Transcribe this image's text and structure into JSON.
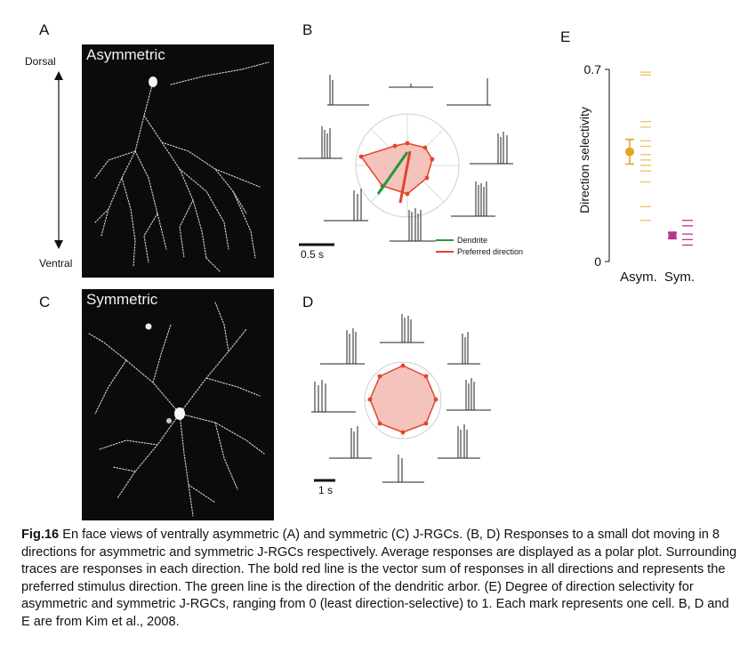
{
  "panels": {
    "A": {
      "letter": "A",
      "title": "Asymmetric",
      "axis_top": "Dorsal",
      "axis_bottom": "Ventral"
    },
    "B": {
      "letter": "B",
      "scale_label": "0.5 s",
      "legend": [
        {
          "label": "Dendrite",
          "color": "#1f9a3a"
        },
        {
          "label": "Preferred direction",
          "color": "#e2452b"
        }
      ]
    },
    "C": {
      "letter": "C",
      "title": "Symmetric"
    },
    "D": {
      "letter": "D",
      "scale_label": "1 s"
    },
    "E": {
      "letter": "E"
    }
  },
  "colors": {
    "asym": "#e0a81c",
    "asym_light": "#f0c060",
    "sym": "#b8378a",
    "polar_fill": "#f4c4bc",
    "polar_line": "#e2452b",
    "dendrite": "#1f9a3a"
  },
  "chart_data": {
    "type": "scatter",
    "title": "",
    "xlabel": "",
    "ylabel": "Direction selectivity",
    "categories": [
      "Asym.",
      "Sym."
    ],
    "ylim": [
      0,
      0.7
    ],
    "yticks": [
      "0",
      "0.7"
    ],
    "series": [
      {
        "name": "Asym.",
        "mean": 0.4,
        "error": 0.045,
        "cells": [
          0.68,
          0.69,
          0.51,
          0.49,
          0.44,
          0.42,
          0.39,
          0.37,
          0.35,
          0.33,
          0.29,
          0.2,
          0.15
        ]
      },
      {
        "name": "Sym.",
        "mean": 0.095,
        "error": 0.01,
        "cells": [
          0.15,
          0.13,
          0.1,
          0.08,
          0.06
        ]
      }
    ]
  },
  "caption": {
    "label": "Fig.16",
    "text": " En face views of ventrally asymmetric (A) and symmetric (C) J-RGCs. (B, D) Responses to a small dot moving in 8 directions for asymmetric and symmetric J-RGCs respectively. Average responses are displayed as a polar plot. Surrounding traces are responses in each direction. The bold red line is the vector sum of responses in all directions and represents the preferred stimulus direction. The green line is the direction of the dendritic arbor. (E) Degree of direction selectivity for asymmetric and symmetric J-RGCs, ranging from 0 (least direction-selective) to 1. Each mark represents one cell. B, D and E are from Kim et al., 2008."
  }
}
